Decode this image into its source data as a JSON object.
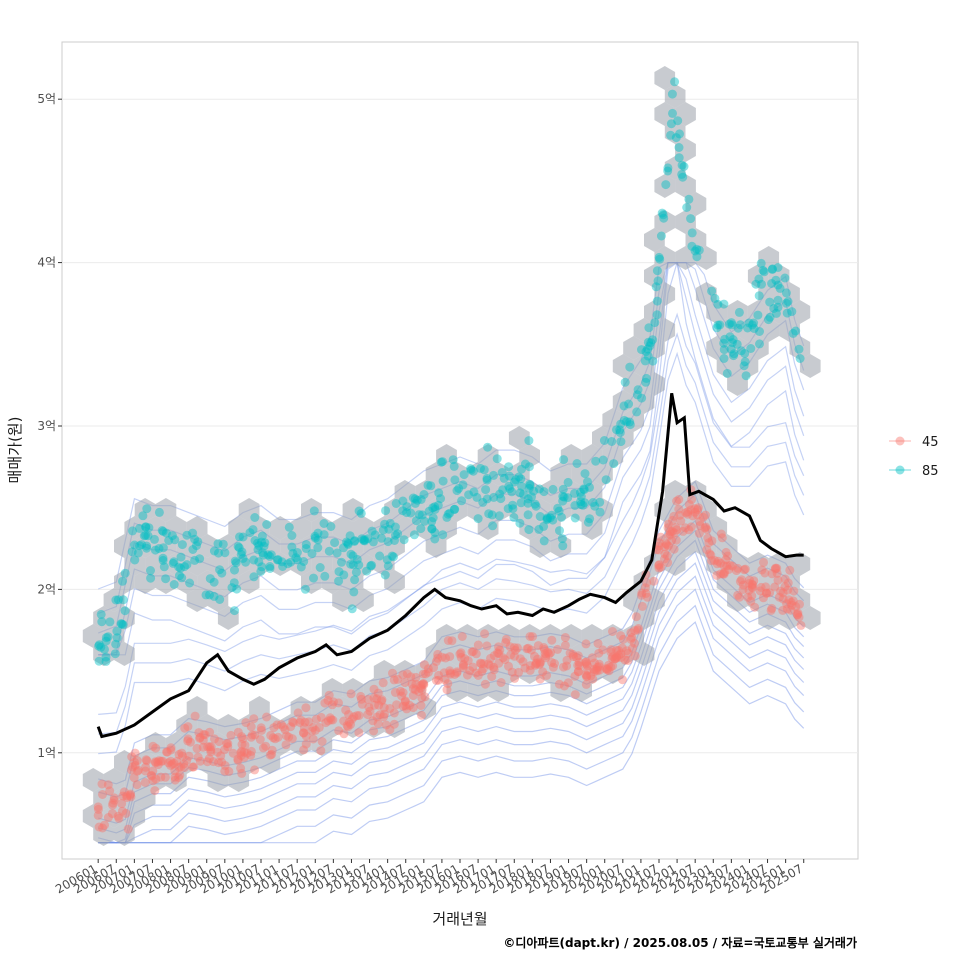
{
  "chart_data": {
    "type": "scatter",
    "xlabel": "거래년월",
    "ylabel": "매매가(원)",
    "caption": "©디아파트(dapt.kr) / 2025.08.05 / 자료=국토교통부 실거래가",
    "x_ticks": [
      "200601",
      "200607",
      "200701",
      "200707",
      "200801",
      "200807",
      "200901",
      "200907",
      "201001",
      "201007",
      "201101",
      "201107",
      "201201",
      "201207",
      "201301",
      "201307",
      "201401",
      "201407",
      "201501",
      "201507",
      "201601",
      "201607",
      "201701",
      "201707",
      "201801",
      "201807",
      "201901",
      "201907",
      "202001",
      "202007",
      "202101",
      "202107",
      "202201",
      "202207",
      "202301",
      "202307",
      "202401",
      "202407",
      "202501",
      "202507"
    ],
    "y_ticks": [
      {
        "value": 1,
        "label": "1억"
      },
      {
        "value": 2,
        "label": "2억"
      },
      {
        "value": 3,
        "label": "3억"
      },
      {
        "value": 4,
        "label": "4억"
      },
      {
        "value": 5,
        "label": "5억"
      }
    ],
    "xlim": [
      2005.0,
      2027.0
    ],
    "ylim": [
      0.35,
      5.35
    ],
    "grid": true,
    "legend_position": "right",
    "series": [
      {
        "name": "45",
        "color": "#F8766D",
        "trend": [
          [
            2006.0,
            0.68
          ],
          [
            2006.5,
            0.65
          ],
          [
            2006.83,
            0.68
          ],
          [
            2007.0,
            0.9
          ],
          [
            2007.5,
            0.95
          ],
          [
            2008.0,
            0.95
          ],
          [
            2008.5,
            1.05
          ],
          [
            2009.0,
            1.03
          ],
          [
            2009.5,
            1.0
          ],
          [
            2010.0,
            1.02
          ],
          [
            2010.5,
            1.05
          ],
          [
            2011.0,
            1.1
          ],
          [
            2011.5,
            1.15
          ],
          [
            2012.0,
            1.15
          ],
          [
            2012.5,
            1.22
          ],
          [
            2013.0,
            1.2
          ],
          [
            2013.5,
            1.28
          ],
          [
            2014.0,
            1.3
          ],
          [
            2014.5,
            1.35
          ],
          [
            2015.0,
            1.4
          ],
          [
            2015.5,
            1.55
          ],
          [
            2016.0,
            1.58
          ],
          [
            2016.5,
            1.55
          ],
          [
            2017.0,
            1.58
          ],
          [
            2017.5,
            1.55
          ],
          [
            2018.0,
            1.55
          ],
          [
            2018.5,
            1.57
          ],
          [
            2019.0,
            1.55
          ],
          [
            2019.5,
            1.5
          ],
          [
            2020.0,
            1.55
          ],
          [
            2020.5,
            1.6
          ],
          [
            2020.9,
            1.75
          ],
          [
            2021.0,
            1.85
          ],
          [
            2021.5,
            2.2
          ],
          [
            2022.0,
            2.4
          ],
          [
            2022.5,
            2.5
          ],
          [
            2023.0,
            2.2
          ],
          [
            2023.5,
            2.1
          ],
          [
            2024.0,
            2.0
          ],
          [
            2024.5,
            2.05
          ],
          [
            2025.0,
            2.0
          ],
          [
            2025.4,
            1.85
          ]
        ]
      },
      {
        "name": "85",
        "color": "#00BFC4",
        "trend": [
          [
            2006.0,
            1.65
          ],
          [
            2006.5,
            1.7
          ],
          [
            2007.0,
            2.3
          ],
          [
            2007.5,
            2.25
          ],
          [
            2008.0,
            2.25
          ],
          [
            2008.5,
            2.2
          ],
          [
            2009.0,
            2.15
          ],
          [
            2009.5,
            2.1
          ],
          [
            2010.0,
            2.2
          ],
          [
            2010.5,
            2.25
          ],
          [
            2011.0,
            2.15
          ],
          [
            2011.5,
            2.15
          ],
          [
            2012.0,
            2.2
          ],
          [
            2012.5,
            2.2
          ],
          [
            2013.0,
            2.15
          ],
          [
            2013.5,
            2.25
          ],
          [
            2014.0,
            2.3
          ],
          [
            2014.5,
            2.4
          ],
          [
            2015.0,
            2.5
          ],
          [
            2015.5,
            2.55
          ],
          [
            2016.0,
            2.6
          ],
          [
            2016.5,
            2.55
          ],
          [
            2017.0,
            2.65
          ],
          [
            2017.5,
            2.65
          ],
          [
            2018.0,
            2.6
          ],
          [
            2018.5,
            2.5
          ],
          [
            2019.0,
            2.55
          ],
          [
            2019.5,
            2.55
          ],
          [
            2020.0,
            2.7
          ],
          [
            2020.5,
            3.1
          ],
          [
            2021.0,
            3.3
          ],
          [
            2021.3,
            3.5
          ],
          [
            2021.6,
            4.2
          ],
          [
            2021.9,
            5.0
          ],
          [
            2022.3,
            4.3
          ],
          [
            2023.0,
            3.7
          ],
          [
            2023.5,
            3.5
          ],
          [
            2024.0,
            3.6
          ],
          [
            2024.5,
            3.8
          ],
          [
            2025.0,
            3.9
          ],
          [
            2025.4,
            3.4
          ]
        ]
      }
    ],
    "median_line": [
      [
        2006.0,
        1.16
      ],
      [
        2006.1,
        1.1
      ],
      [
        2006.5,
        1.12
      ],
      [
        2007.0,
        1.17
      ],
      [
        2007.5,
        1.25
      ],
      [
        2008.0,
        1.33
      ],
      [
        2008.5,
        1.38
      ],
      [
        2009.0,
        1.55
      ],
      [
        2009.3,
        1.6
      ],
      [
        2009.6,
        1.5
      ],
      [
        2010.0,
        1.45
      ],
      [
        2010.3,
        1.42
      ],
      [
        2010.6,
        1.45
      ],
      [
        2011.0,
        1.52
      ],
      [
        2011.5,
        1.58
      ],
      [
        2012.0,
        1.62
      ],
      [
        2012.3,
        1.66
      ],
      [
        2012.6,
        1.6
      ],
      [
        2013.0,
        1.62
      ],
      [
        2013.5,
        1.7
      ],
      [
        2014.0,
        1.75
      ],
      [
        2014.5,
        1.84
      ],
      [
        2015.0,
        1.95
      ],
      [
        2015.3,
        2.0
      ],
      [
        2015.6,
        1.95
      ],
      [
        2016.0,
        1.93
      ],
      [
        2016.3,
        1.9
      ],
      [
        2016.6,
        1.88
      ],
      [
        2017.0,
        1.9
      ],
      [
        2017.3,
        1.85
      ],
      [
        2017.6,
        1.86
      ],
      [
        2018.0,
        1.84
      ],
      [
        2018.3,
        1.88
      ],
      [
        2018.6,
        1.86
      ],
      [
        2019.0,
        1.9
      ],
      [
        2019.3,
        1.94
      ],
      [
        2019.6,
        1.97
      ],
      [
        2020.0,
        1.95
      ],
      [
        2020.3,
        1.92
      ],
      [
        2020.6,
        1.98
      ],
      [
        2021.0,
        2.05
      ],
      [
        2021.3,
        2.18
      ],
      [
        2021.6,
        2.6
      ],
      [
        2021.85,
        3.2
      ],
      [
        2022.0,
        3.02
      ],
      [
        2022.2,
        3.05
      ],
      [
        2022.35,
        2.58
      ],
      [
        2022.6,
        2.6
      ],
      [
        2023.0,
        2.55
      ],
      [
        2023.3,
        2.48
      ],
      [
        2023.6,
        2.5
      ],
      [
        2024.0,
        2.45
      ],
      [
        2024.3,
        2.3
      ],
      [
        2024.6,
        2.25
      ],
      [
        2025.0,
        2.2
      ],
      [
        2025.3,
        2.21
      ],
      [
        2025.5,
        2.21
      ]
    ]
  }
}
